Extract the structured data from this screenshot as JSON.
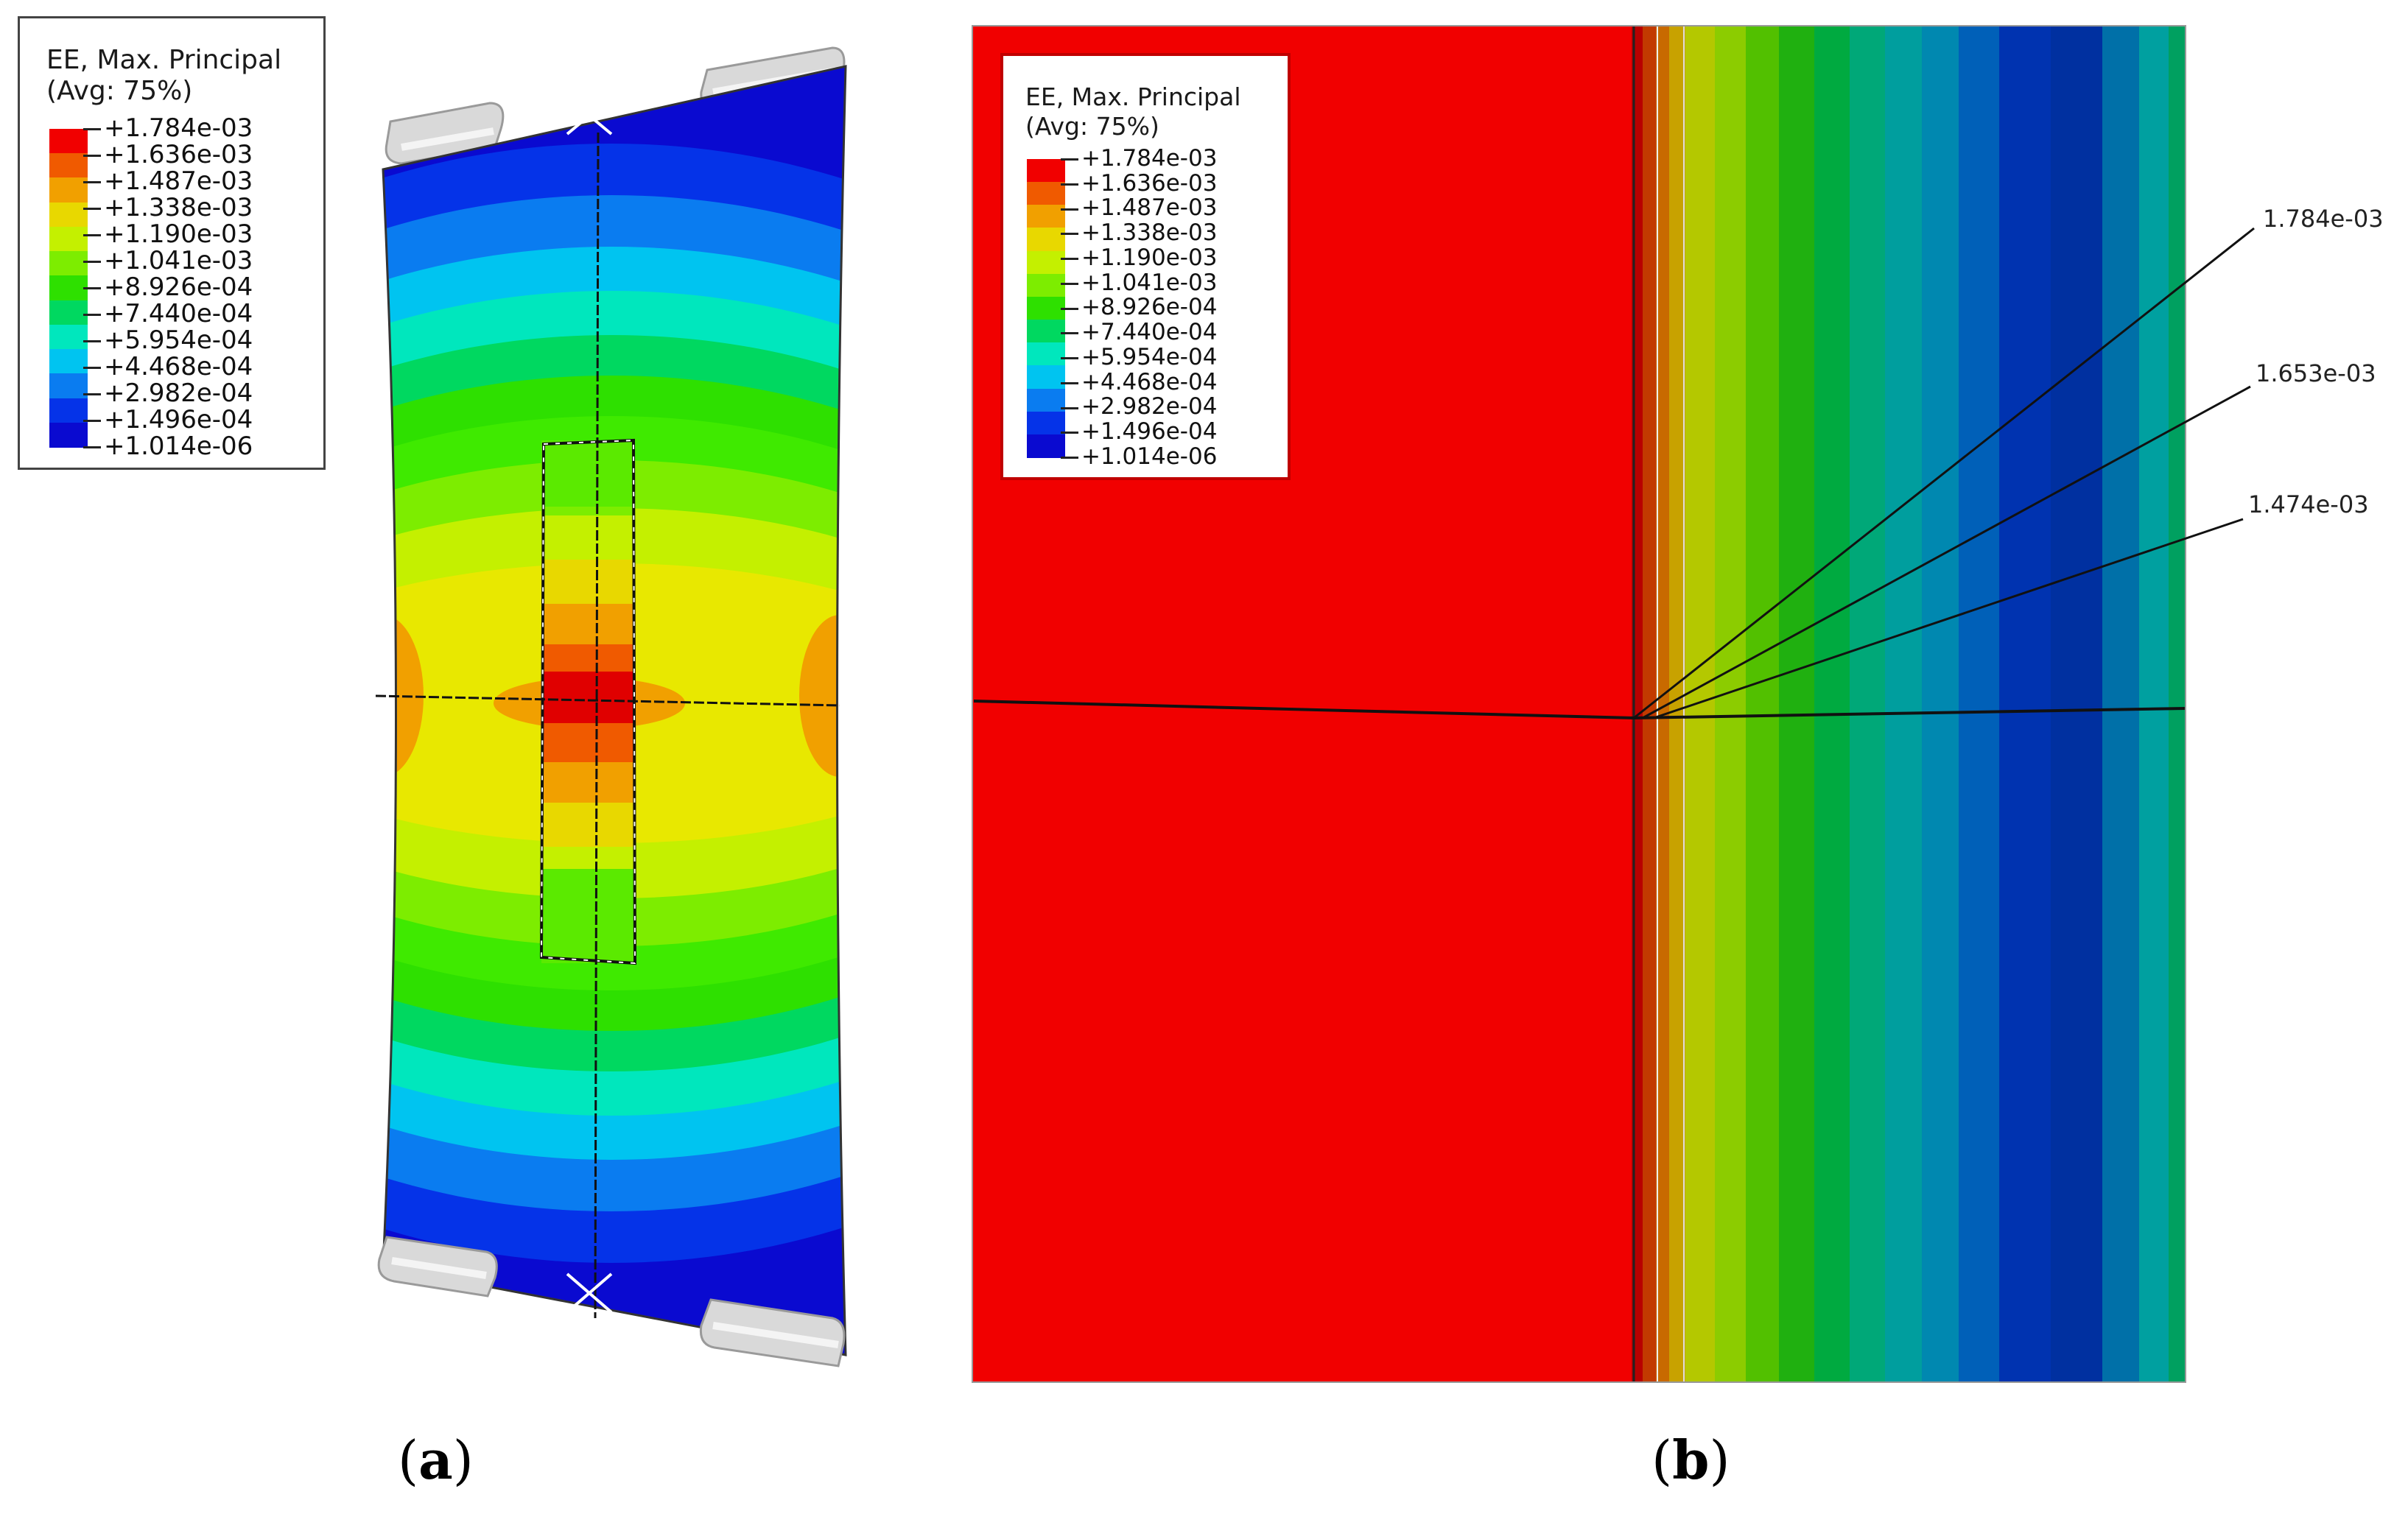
{
  "legend": {
    "title": "EE, Max. Principal",
    "subtitle": "(Avg: 75%)",
    "levels": [
      "+1.784e-03",
      "+1.636e-03",
      "+1.487e-03",
      "+1.338e-03",
      "+1.190e-03",
      "+1.041e-03",
      "+8.926e-04",
      "+7.440e-04",
      "+5.954e-04",
      "+4.468e-04",
      "+2.982e-04",
      "+1.496e-04",
      "+1.014e-06"
    ],
    "colors": [
      "#f10000",
      "#f05a00",
      "#f1a000",
      "#e8d800",
      "#c4f000",
      "#7ded00",
      "#2ee000",
      "#00d860",
      "#00e7bd",
      "#00c4f0",
      "#0a7cf0",
      "#0533e8",
      "#0a0ad0"
    ]
  },
  "panel_a": {
    "caption_open": "(",
    "caption_letter": "a",
    "caption_close": ")"
  },
  "panel_b": {
    "caption_open": "(",
    "caption_letter": "b",
    "caption_close": ")",
    "callouts": [
      "1.784e-03",
      "1.653e-03",
      "1.474e-03"
    ]
  }
}
